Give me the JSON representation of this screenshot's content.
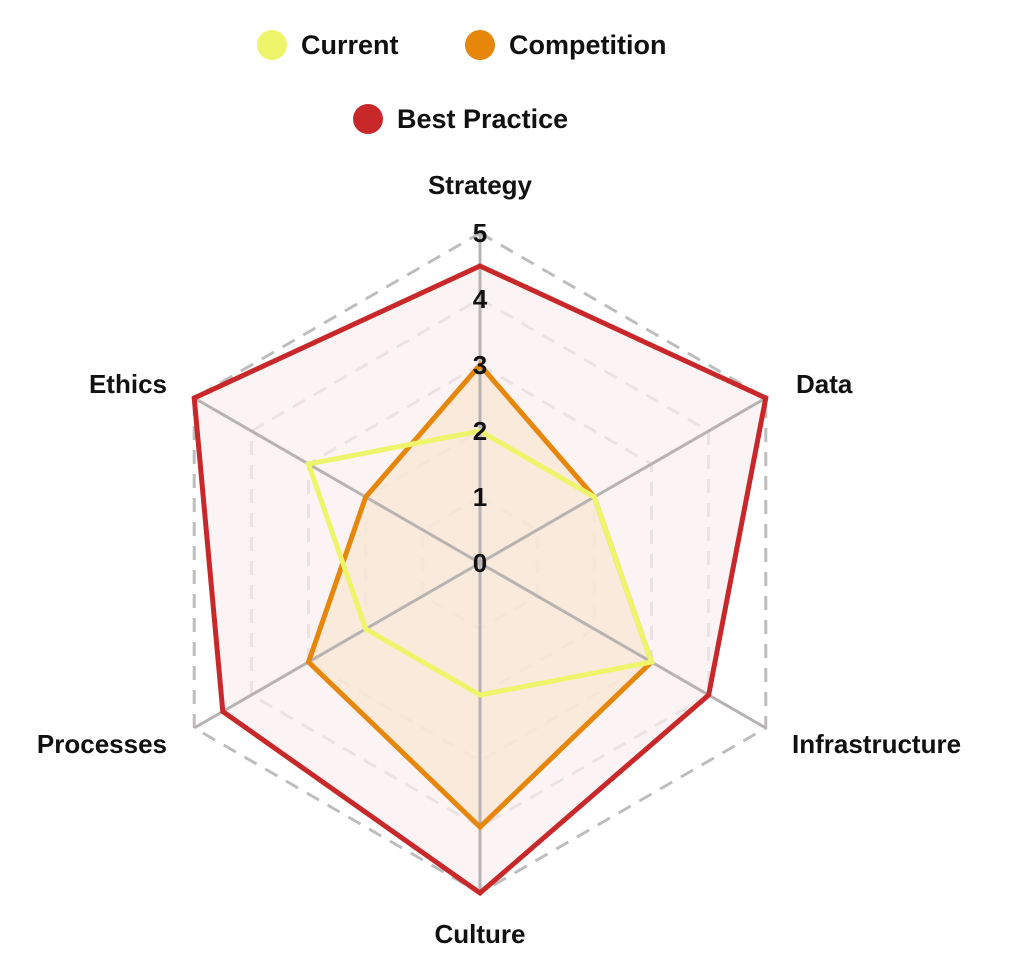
{
  "chart_data": {
    "type": "radar",
    "title": "",
    "axes": [
      "Strategy",
      "Data",
      "Infrastructure",
      "Culture",
      "Processes",
      "Ethics"
    ],
    "ticks": [
      "0",
      "1",
      "2",
      "3",
      "4",
      "5"
    ],
    "range": [
      0,
      5
    ],
    "grid": "dashed",
    "legend_position": "top-center",
    "series": [
      {
        "name": "Current",
        "values": [
          2,
          2,
          3,
          2,
          2,
          3
        ],
        "color": "#eef56a",
        "fill": false
      },
      {
        "name": "Competition",
        "values": [
          3,
          2,
          3,
          4,
          3,
          2
        ],
        "color": "#e6860a",
        "fill": true,
        "fill_color": "#f8e7d3"
      },
      {
        "name": "Best Practice",
        "values": [
          4.5,
          5,
          4,
          5,
          4.5,
          5
        ],
        "color": "#c8282a",
        "fill": true,
        "fill_color": "#fbeff0"
      }
    ]
  }
}
